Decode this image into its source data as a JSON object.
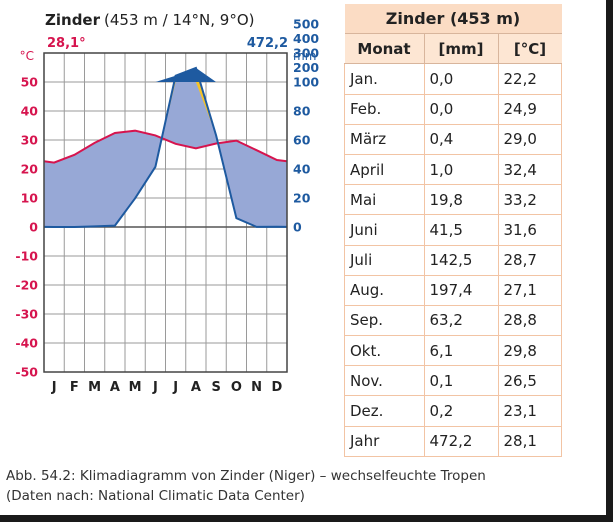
{
  "chart_data": {
    "type": "climate-diagram",
    "title": {
      "station": "Zinder",
      "details": "(453 m / 14°N, 9°O)"
    },
    "annual_temperature": "28,1°",
    "annual_precipitation": "472,2",
    "temp_unit": "°C",
    "precip_unit": "mm",
    "months_short": [
      "J",
      "F",
      "M",
      "A",
      "M",
      "J",
      "J",
      "A",
      "S",
      "O",
      "N",
      "D"
    ],
    "temperature_c": [
      22.2,
      24.9,
      29.0,
      32.4,
      33.2,
      31.6,
      28.7,
      27.1,
      28.8,
      29.8,
      26.5,
      23.1
    ],
    "precipitation_mm": [
      0.0,
      0.0,
      0.4,
      1.0,
      19.8,
      41.5,
      142.5,
      197.4,
      63.2,
      6.1,
      0.1,
      0.2
    ],
    "temp_axis_ticks": [
      50,
      40,
      30,
      20,
      10,
      0,
      -10,
      -20,
      -30,
      -40,
      -50
    ],
    "precip_axis_ticks": [
      500,
      400,
      300,
      200,
      100,
      80,
      60,
      40,
      20,
      0
    ],
    "temp_axis_range": [
      -50,
      60
    ],
    "precip_scale": "1 °C = 2 mm up to 100 mm; 1 °C = 20 mm above 100 mm",
    "colors": {
      "temperature": "#d6144e",
      "precipitation": "#1e5aa0",
      "arid": "#f5c326",
      "humid": "#97a8d6",
      "perhumid": "#1e5aa0",
      "grid": "#9a9a9a"
    }
  },
  "table": {
    "title": "Zinder (453 m)",
    "headers": [
      "Monat",
      "[mm]",
      "[°C]"
    ],
    "rows": [
      [
        "Jan.",
        "0,0",
        "22,2"
      ],
      [
        "Feb.",
        "0,0",
        "24,9"
      ],
      [
        "März",
        "0,4",
        "29,0"
      ],
      [
        "April",
        "1,0",
        "32,4"
      ],
      [
        "Mai",
        "19,8",
        "33,2"
      ],
      [
        "Juni",
        "41,5",
        "31,6"
      ],
      [
        "Juli",
        "142,5",
        "28,7"
      ],
      [
        "Aug.",
        "197,4",
        "27,1"
      ],
      [
        "Sep.",
        "63,2",
        "28,8"
      ],
      [
        "Okt.",
        "6,1",
        "29,8"
      ],
      [
        "Nov.",
        "0,1",
        "26,5"
      ],
      [
        "Dez.",
        "0,2",
        "23,1"
      ],
      [
        "Jahr",
        "472,2",
        "28,1"
      ]
    ]
  },
  "caption": {
    "line1": "Abb. 54.2: Klimadiagramm von Zinder (Niger) – wechselfeuchte Tropen",
    "line2": "(Daten nach: National Climatic Data Center)"
  }
}
